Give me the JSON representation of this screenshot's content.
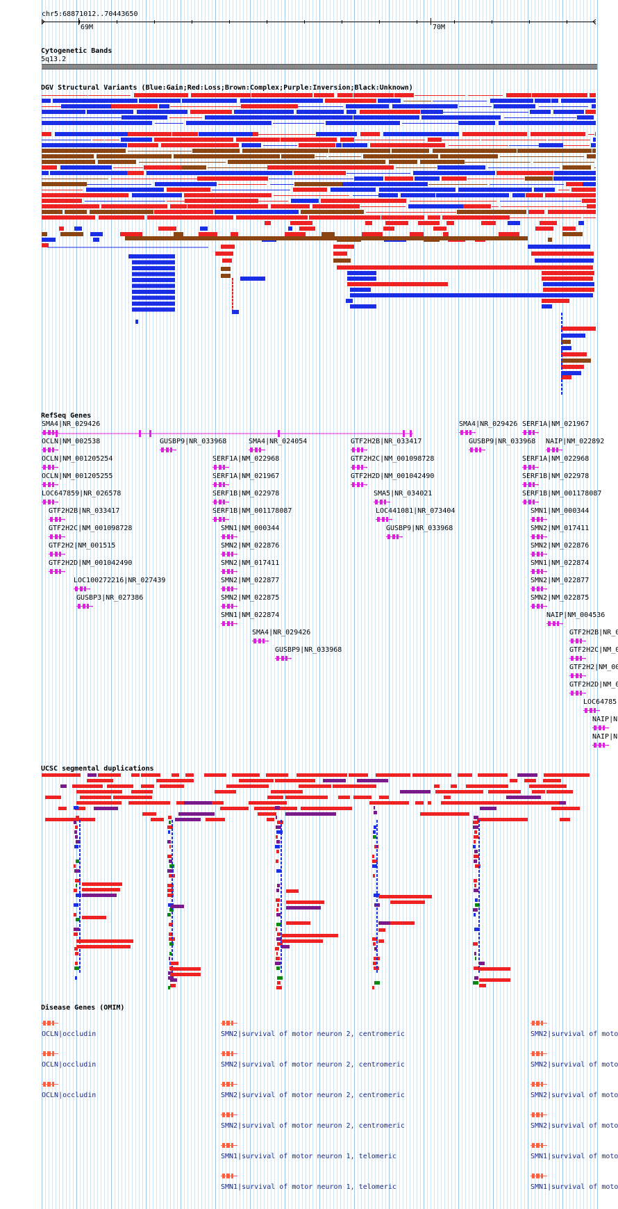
{
  "position": "chr5:68871012..70443650",
  "ruler": {
    "ticks": [
      {
        "label": "69M",
        "x": 113
      },
      {
        "label": "70M",
        "x": 620
      }
    ]
  },
  "colors": {
    "gain": "#1a2ee6",
    "loss": "#ee2222",
    "complex": "#8b4513",
    "grid": "#a8d4f0",
    "gene": "#e020e0",
    "omim": "#ff6040",
    "dup_red": "#ee2222",
    "dup_purple": "#7a1a8a",
    "dup_green": "#0a8a0a",
    "dup_blue": "#1a2ee6"
  },
  "tracks": {
    "cytoband": {
      "title": "Cytogenetic Bands",
      "band": "5q13.2"
    },
    "dgv": {
      "title": "DGV Structural Variants (Blue:Gain;Red:Loss;Brown:Complex;Purple:Inversion;Black:Unknown)"
    },
    "refseq": {
      "title": "RefSeq Genes"
    },
    "segdup": {
      "title": "UCSC segmental duplications"
    },
    "omim": {
      "title": "Disease Genes (OMIM)"
    }
  },
  "genes": [
    {
      "name": "SMA4|NR_029426"
    },
    {
      "name": "OCLN|NM_002538"
    },
    {
      "name": "OCLN|NM_001205254"
    },
    {
      "name": "OCLN|NM_001205255"
    },
    {
      "name": "LOC647859|NR_026578"
    },
    {
      "name": "GTF2H2B|NR_033417"
    },
    {
      "name": "GTF2H2C|NM_001098728"
    },
    {
      "name": "GTF2H2|NM_001515"
    },
    {
      "name": "GTF2H2D|NM_001042490"
    },
    {
      "name": "LOC100272216|NR_027439"
    },
    {
      "name": "GUSBP3|NR_027386"
    },
    {
      "name": "GUSBP9|NR_033968"
    },
    {
      "name": "SMA4|NR_024054"
    },
    {
      "name": "SERF1A|NM_022968"
    },
    {
      "name": "SERF1A|NM_021967"
    },
    {
      "name": "SERF1B|NM_022978"
    },
    {
      "name": "SERF1B|NM_001178087"
    },
    {
      "name": "SMN1|NM_000344"
    },
    {
      "name": "SMN2|NM_022876"
    },
    {
      "name": "SMN2|NM_017411"
    },
    {
      "name": "SMN2|NM_022877"
    },
    {
      "name": "SMN2|NM_022875"
    },
    {
      "name": "SMN1|NM_022874"
    },
    {
      "name": "SMA4|NR_029426"
    },
    {
      "name": "GUSBP9|NR_033968"
    },
    {
      "name": "GTF2H2B|NR_033417"
    },
    {
      "name": "GTF2H2C|NM_001098728"
    },
    {
      "name": "GTF2H2D|NM_001042490"
    },
    {
      "name": "SMA5|NR_034021"
    },
    {
      "name": "LOC441081|NR_073404"
    },
    {
      "name": "GUSBP9|NR_033968"
    },
    {
      "name": "SMA4|NR_029426"
    },
    {
      "name": "GUSBP9|NR_033968"
    },
    {
      "name": "SERF1A|NM_021967"
    },
    {
      "name": "NAIP|NM_022892"
    },
    {
      "name": "SERF1A|NM_022968"
    },
    {
      "name": "SERF1B|NM_022978"
    },
    {
      "name": "SERF1B|NM_001178087"
    },
    {
      "name": "SMN1|NM_000344"
    },
    {
      "name": "SMN2|NM_017411"
    },
    {
      "name": "SMN2|NM_022876"
    },
    {
      "name": "SMN1|NM_022874"
    },
    {
      "name": "SMN2|NM_022877"
    },
    {
      "name": "SMN2|NM_022875"
    },
    {
      "name": "NAIP|NM_004536"
    },
    {
      "name": "GTF2H2B|NR_0"
    },
    {
      "name": "GTF2H2C|NM_0"
    },
    {
      "name": "GTF2H2|NM_00"
    },
    {
      "name": "GTF2H2D|NM_0"
    },
    {
      "name": "LOC64785"
    },
    {
      "name": "NAIP|N"
    },
    {
      "name": "NAIP|N"
    }
  ],
  "omim": [
    {
      "name": "OCLN|occludin"
    },
    {
      "name": "OCLN|occludin"
    },
    {
      "name": "OCLN|occludin"
    },
    {
      "name": "SMN2|survival of motor neuron 2, centromeric"
    },
    {
      "name": "SMN2|survival of motor neuron 2, centromeric"
    },
    {
      "name": "SMN2|survival of motor neuron 2, centromeric"
    },
    {
      "name": "SMN2|survival of motor neuron 2, centromeric"
    },
    {
      "name": "SMN1|survival of motor neuron 1, telomeric"
    },
    {
      "name": "SMN1|survival of motor neuron 1, telomeric"
    },
    {
      "name": "SMN2|survival of moto"
    },
    {
      "name": "SMN2|survival of moto"
    },
    {
      "name": "SMN2|survival of moto"
    },
    {
      "name": "SMN2|survival of moto"
    },
    {
      "name": "SMN1|survival of moto"
    },
    {
      "name": "SMN1|survival of moto"
    }
  ]
}
